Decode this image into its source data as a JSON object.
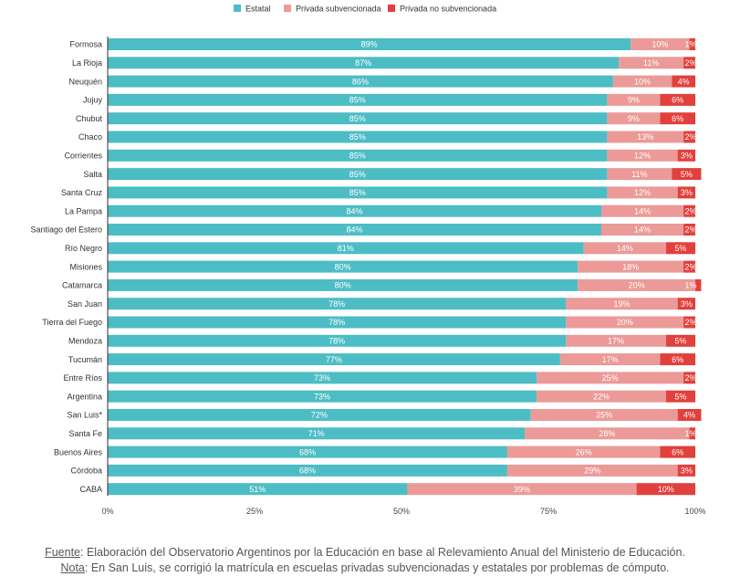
{
  "chart_data": {
    "type": "bar",
    "orientation": "horizontal",
    "stacked": true,
    "percent": true,
    "legend": {
      "position": "top"
    },
    "series": [
      {
        "name": "Estatal",
        "color": "#4dbdc5",
        "values": [
          89,
          87,
          86,
          85,
          85,
          85,
          85,
          85,
          85,
          84,
          84,
          81,
          80,
          80,
          78,
          78,
          78,
          77,
          73,
          73,
          72,
          71,
          68,
          68,
          51
        ]
      },
      {
        "name": "Privada subvencionada",
        "color": "#eb9a98",
        "values": [
          10,
          11,
          10,
          9,
          9,
          13,
          12,
          11,
          12,
          14,
          14,
          14,
          18,
          20,
          19,
          20,
          17,
          17,
          25,
          22,
          25,
          28,
          26,
          29,
          39
        ]
      },
      {
        "name": "Privada no subvencionada",
        "color": "#e2403c",
        "values": [
          1,
          2,
          4,
          6,
          6,
          2,
          3,
          5,
          3,
          2,
          2,
          5,
          2,
          1,
          3,
          2,
          5,
          6,
          2,
          5,
          4,
          1,
          6,
          3,
          10
        ]
      }
    ],
    "categories": [
      "Formosa",
      "La Rioja",
      "Neuquén",
      "Jujuy",
      "Chubut",
      "Chaco",
      "Corrientes",
      "Salta",
      "Santa Cruz",
      "La Pampa",
      "Santiago del Estero",
      "Río Negro",
      "Misiones",
      "Catamarca",
      "San Juan",
      "Tierra del Fuego",
      "Mendoza",
      "Tucumán",
      "Entre Ríos",
      "Argentina",
      "San Luis*",
      "Santa Fe",
      "Buenos Aires",
      "Córdoba",
      "CABA"
    ],
    "xticks": [
      "0%",
      "25%",
      "50%",
      "75%",
      "100%"
    ],
    "xlim": [
      0,
      100
    ],
    "xlabel": "",
    "ylabel": "",
    "title": ""
  },
  "footer": {
    "fuente_label": "Fuente",
    "fuente_text": ": Elaboración del Observatorio Argentinos por la Educación en base al Relevamiento Anual del Ministerio de Educación.",
    "nota_label": "Nota",
    "nota_text": ": En San Luis, se corrigió la matrícula en escuelas privadas subvencionadas y estatales por problemas de cómputo."
  }
}
